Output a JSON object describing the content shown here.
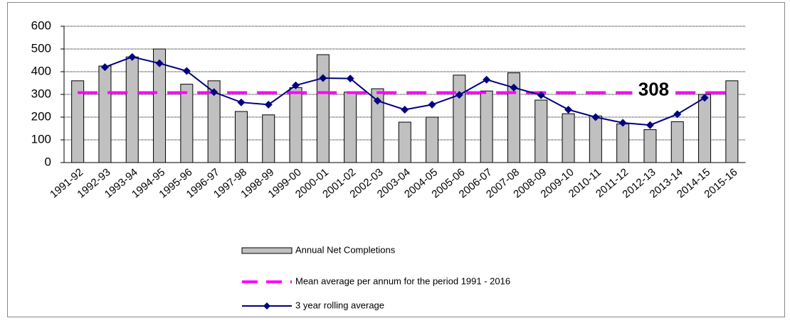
{
  "chart_data": {
    "type": "bar",
    "categories": [
      "1991-92",
      "1992-93",
      "1993-94",
      "1994-95",
      "1995-96",
      "1996-97",
      "1997-98",
      "1998-99",
      "1999-00",
      "2000-01",
      "2001-02",
      "2002-03",
      "2003-04",
      "2004-05",
      "2005-06",
      "2006-07",
      "2007-08",
      "2008-09",
      "2009-10",
      "2010-11",
      "2011-12",
      "2012-13",
      "2013-14",
      "2014-15",
      "2015-16"
    ],
    "series": [
      {
        "name": "Annual Net Completions",
        "type": "bar",
        "color": "#c0c0c0",
        "values": [
          360,
          425,
          465,
          500,
          345,
          360,
          225,
          210,
          330,
          475,
          310,
          325,
          178,
          200,
          385,
          315,
          395,
          275,
          215,
          205,
          170,
          145,
          180,
          300,
          360
        ]
      },
      {
        "name": "Mean average per annum for the period 1991 - 2016",
        "type": "hline",
        "color": "#ff00ff",
        "value": 308
      },
      {
        "name": "3 year rolling average",
        "type": "line",
        "color": "#000080",
        "values": [
          null,
          420,
          465,
          437,
          403,
          310,
          265,
          255,
          340,
          372,
          370,
          272,
          233,
          255,
          298,
          365,
          330,
          297,
          233,
          200,
          175,
          165,
          213,
          285,
          null
        ]
      }
    ],
    "ylim": [
      0,
      600
    ],
    "yticks": [
      0,
      100,
      200,
      300,
      400,
      500,
      600
    ],
    "grid": true
  }
}
